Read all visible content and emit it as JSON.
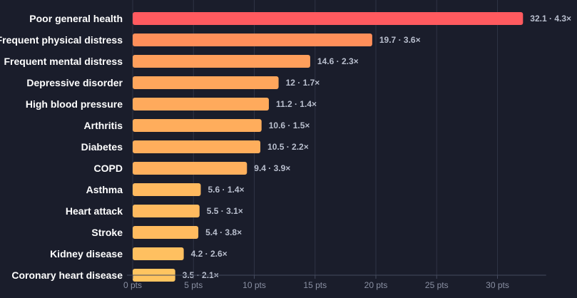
{
  "chart_data": {
    "type": "bar",
    "orientation": "horizontal",
    "categories": [
      "Poor general health",
      "Frequent physical distress",
      "Frequent mental distress",
      "Depressive disorder",
      "High blood pressure",
      "Arthritis",
      "Diabetes",
      "COPD",
      "Asthma",
      "Heart attack",
      "Stroke",
      "Kidney disease",
      "Coronary heart disease"
    ],
    "values": [
      32.1,
      19.7,
      14.6,
      12,
      11.2,
      10.6,
      10.5,
      9.4,
      5.6,
      5.5,
      5.4,
      4.2,
      3.5
    ],
    "ratios": [
      "4.3×",
      "3.6×",
      "2.3×",
      "1.7×",
      "1.4×",
      "1.5×",
      "2.2×",
      "3.9×",
      "1.4×",
      "3.1×",
      "3.8×",
      "2.6×",
      "2.1×"
    ],
    "data_labels": [
      "32.1 · 4.3×",
      "19.7 · 3.6×",
      "14.6 · 2.3×",
      "12 · 1.7×",
      "11.2 · 1.4×",
      "10.6 · 1.5×",
      "10.5 · 2.2×",
      "9.4 · 3.9×",
      "5.6 · 1.4×",
      "5.5 · 3.1×",
      "5.4 · 3.8×",
      "4.2 · 2.6×",
      "3.5 · 2.1×"
    ],
    "xticks": [
      0,
      5,
      10,
      15,
      20,
      25,
      30
    ],
    "xtick_labels": [
      "0 pts",
      "5 pts",
      "10 pts",
      "15 pts",
      "20 pts",
      "25 pts",
      "30 pts"
    ],
    "xlim": [
      0,
      34
    ],
    "grid": true,
    "colors": [
      "#ff5a5f",
      "#ff8f5a",
      "#ff9f5c",
      "#ffa65c",
      "#ffaa5c",
      "#ffad5c",
      "#ffae5c",
      "#ffb05d",
      "#ffb95f",
      "#ffba5f",
      "#ffbb5f",
      "#ffc060",
      "#ffc460"
    ]
  }
}
